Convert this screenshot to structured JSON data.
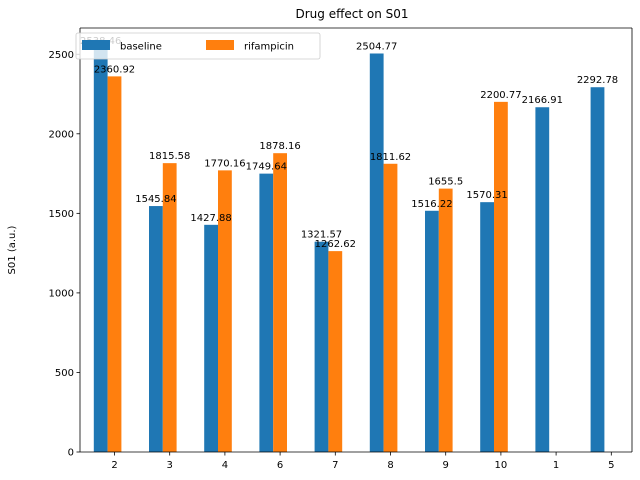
{
  "chart_data": {
    "type": "bar",
    "title": "Drug effect on S01",
    "xlabel": "",
    "ylabel": "S01 (a.u.)",
    "categories": [
      "2",
      "3",
      "4",
      "6",
      "7",
      "8",
      "9",
      "10",
      "1",
      "5"
    ],
    "series": [
      {
        "name": "baseline",
        "color": "#1f77b4",
        "values": [
          2538.46,
          1545.84,
          1427.88,
          1749.64,
          1321.57,
          2504.77,
          1516.22,
          1570.31,
          2166.91,
          2292.78
        ],
        "labels": [
          "2538.46",
          "1545.84",
          "1427.88",
          "1749.64",
          "1321.57",
          "2504.77",
          "1516.22",
          "1570.31",
          "2166.91",
          "2292.78"
        ]
      },
      {
        "name": "rifampicin",
        "color": "#ff7f0e",
        "values": [
          2360.92,
          1815.58,
          1770.16,
          1878.16,
          1262.62,
          1811.62,
          1655.5,
          2200.77,
          null,
          null
        ],
        "labels": [
          "2360.92",
          "1815.58",
          "1770.16",
          "1878.16",
          "1262.62",
          "1811.62",
          "1655.5",
          "2200.77",
          null,
          null
        ]
      }
    ],
    "ylim": [
      0,
      2665
    ],
    "yticks": [
      0,
      500,
      1000,
      1500,
      2000,
      2500
    ],
    "grid": false,
    "legend": {
      "placement": "top-left",
      "columns": 2
    }
  }
}
